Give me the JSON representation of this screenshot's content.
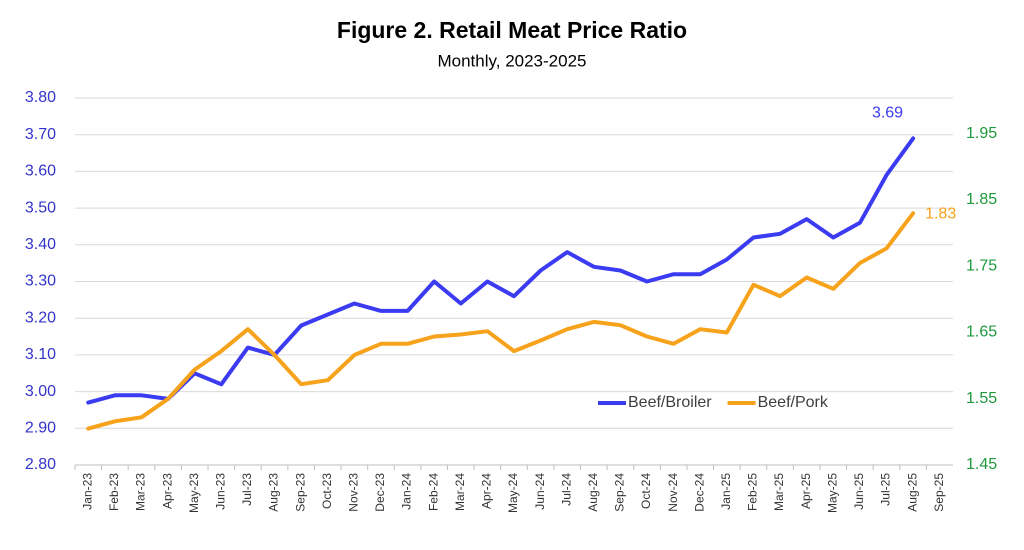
{
  "chart_data": {
    "type": "line",
    "title": "Figure 2. Retail Meat Price Ratio",
    "subtitle": "Monthly, 2023-2025",
    "categories": [
      "Jan-23",
      "Feb-23",
      "Mar-23",
      "Apr-23",
      "May-23",
      "Jun-23",
      "Jul-23",
      "Aug-23",
      "Sep-23",
      "Oct-23",
      "Nov-23",
      "Dec-23",
      "Jan-24",
      "Feb-24",
      "Mar-24",
      "Apr-24",
      "May-24",
      "Jun-24",
      "Jul-24",
      "Aug-24",
      "Sep-24",
      "Oct-24",
      "Nov-24",
      "Dec-24",
      "Jan-25",
      "Feb-25",
      "Mar-25",
      "Apr-25",
      "May-25",
      "Jun-25",
      "Jul-25",
      "Aug-25",
      "Sep-25"
    ],
    "series": [
      {
        "name": "Beef/Broiler",
        "color": "#3b3bf2",
        "axis": "y",
        "values": [
          2.97,
          2.99,
          2.99,
          2.98,
          3.05,
          3.02,
          3.12,
          3.1,
          3.18,
          3.21,
          3.24,
          3.22,
          3.22,
          3.3,
          3.24,
          3.3,
          3.26,
          3.33,
          3.38,
          3.34,
          3.33,
          3.3,
          3.32,
          3.32,
          3.36,
          3.42,
          3.43,
          3.47,
          3.42,
          3.46,
          3.59,
          3.69,
          null
        ]
      },
      {
        "name": "Beef/Pork",
        "color": "#f7a21b",
        "axis": "y2",
        "values": [
          1.505,
          1.516,
          1.522,
          1.55,
          1.594,
          1.622,
          1.655,
          1.616,
          1.572,
          1.578,
          1.616,
          1.633,
          1.633,
          1.644,
          1.647,
          1.652,
          1.622,
          1.638,
          1.655,
          1.666,
          1.661,
          1.644,
          1.633,
          1.655,
          1.65,
          1.722,
          1.705,
          1.733,
          1.716,
          1.755,
          1.777,
          1.83,
          null
        ]
      }
    ],
    "ylim": [
      2.8,
      3.8
    ],
    "yticks": [
      {
        "value": 2.8,
        "label": "2.80"
      },
      {
        "value": 2.9,
        "label": "2.90"
      },
      {
        "value": 3.0,
        "label": "3.00"
      },
      {
        "value": 3.1,
        "label": "3.10"
      },
      {
        "value": 3.2,
        "label": "3.20"
      },
      {
        "value": 3.3,
        "label": "3.30"
      },
      {
        "value": 3.4,
        "label": "3.40"
      },
      {
        "value": 3.5,
        "label": "3.50"
      },
      {
        "value": 3.6,
        "label": "3.60"
      },
      {
        "value": 3.7,
        "label": "3.70"
      },
      {
        "value": 3.8,
        "label": "3.80"
      }
    ],
    "y2lim": [
      1.45,
      2.004
    ],
    "y2ticks": [
      1.45,
      1.55,
      1.65,
      1.75,
      1.85,
      1.95
    ],
    "ytick_color": "#3333cc",
    "y2tick_color": "#1e9a3c",
    "grid": true,
    "legend": "lower-right"
  }
}
